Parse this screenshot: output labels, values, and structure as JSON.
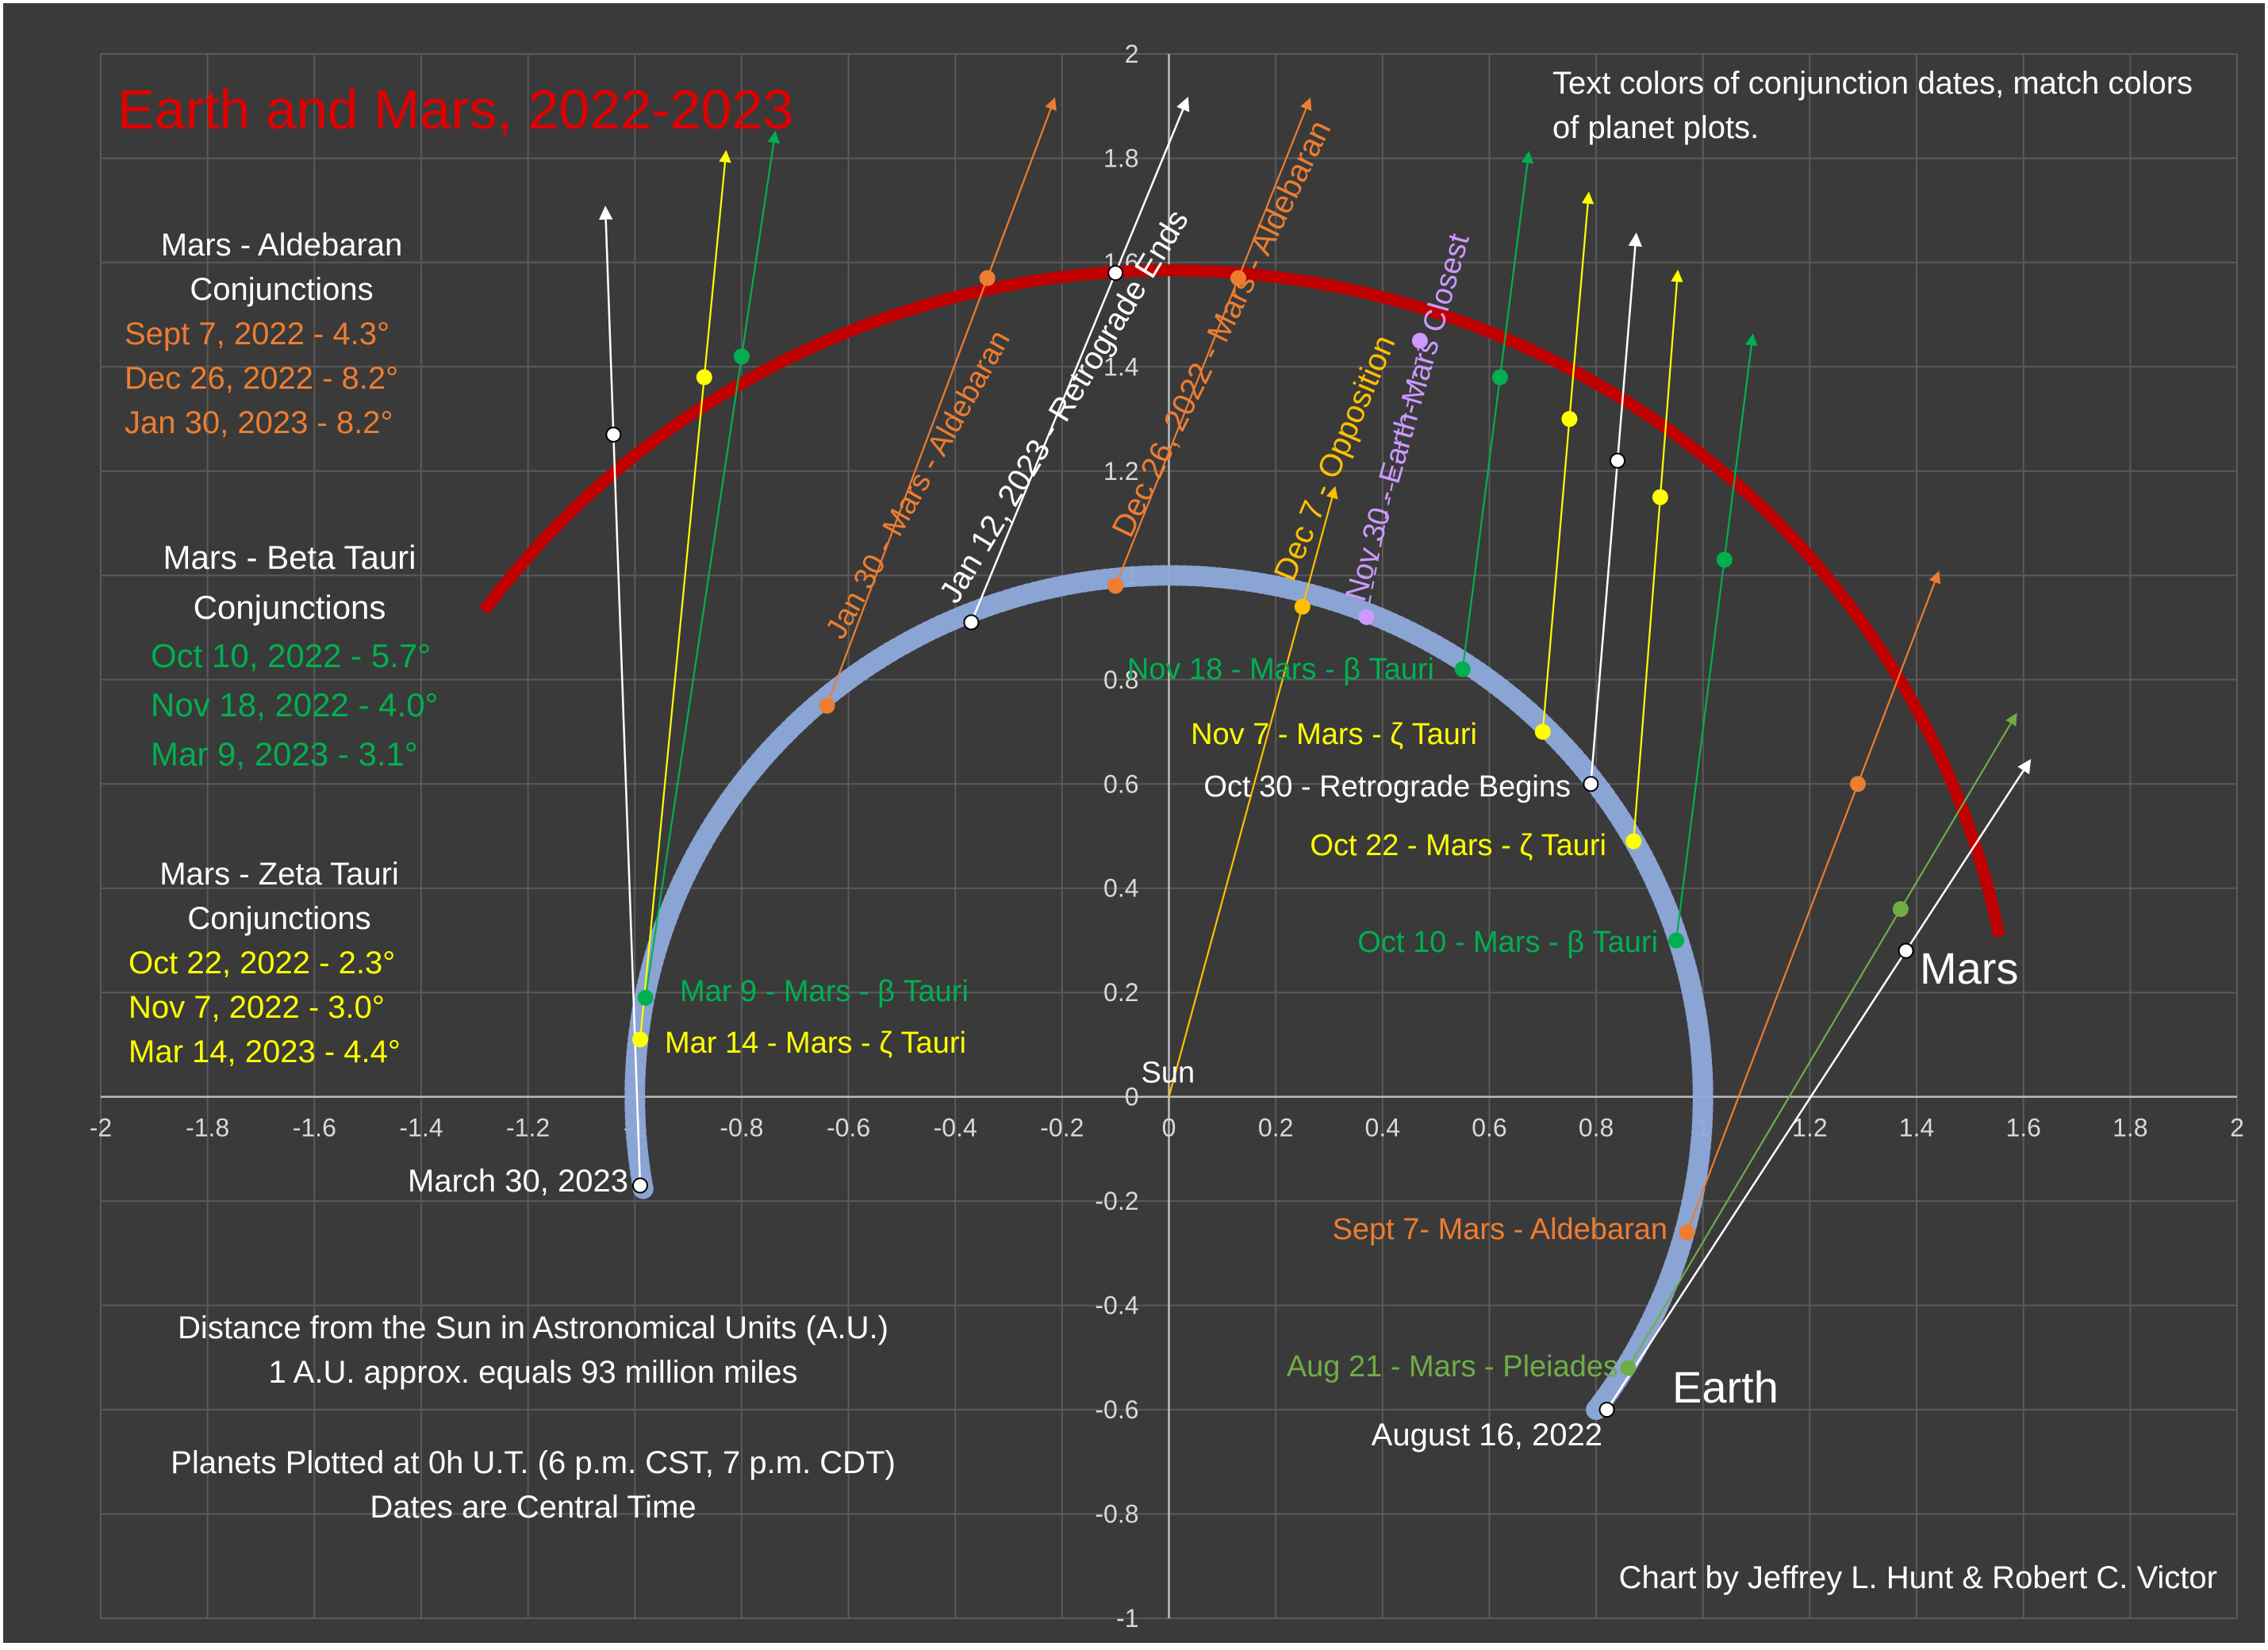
{
  "chart_data": {
    "type": "scatter",
    "title": "Earth and Mars, 2022-2023",
    "xlabel": "",
    "ylabel": "",
    "xlim": [
      -2,
      2
    ],
    "ylim": [
      -1,
      2
    ],
    "x_ticks": [
      "-2",
      "-1.8",
      "-1.6",
      "-1.4",
      "-1.2",
      "-1",
      "-0.8",
      "-0.6",
      "-0.4",
      "-0.2",
      "0",
      "0.2",
      "0.4",
      "0.6",
      "0.8",
      "1",
      "1.2",
      "1.4",
      "1.6",
      "1.8",
      "2"
    ],
    "y_ticks": [
      "-1",
      "-0.8",
      "-0.6",
      "-0.4",
      "-0.2",
      "0",
      "0.2",
      "0.4",
      "0.6",
      "0.8",
      "1",
      "1.2",
      "1.4",
      "1.6",
      "1.8",
      "2"
    ],
    "grid": true,
    "legend": "none",
    "colors": {
      "background": "#3a3a3a",
      "grid": "#5a5a5a",
      "axis": "#bdbdbd",
      "tick_label": "#d9d9d9",
      "title": "#e00000",
      "earth_orbit": "#8eaadb",
      "mars_orbit": "#c00000",
      "aldebaran": "#ed7d31",
      "beta_tauri": "#00b050",
      "zeta_tauri": "#ffff00",
      "retrograde": "#ffffff",
      "opposition": "#ffc000",
      "closest": "#cc99ff",
      "pleiades": "#70ad47",
      "text": "#ffffff"
    },
    "sun": {
      "x": 0,
      "y": 0,
      "label": "Sun"
    },
    "earth_path": {
      "r": 1.0,
      "start_deg": -36.87,
      "end_deg": 190.5,
      "label": "Earth",
      "color": "#8eaadb"
    },
    "mars_path": {
      "r": 1.585,
      "start_deg": 11.2,
      "end_deg": 144.0,
      "label": "Mars",
      "color": "#c00000"
    },
    "sightlines": [
      {
        "earth": [
          0.82,
          -0.6
        ],
        "mars": [
          1.38,
          0.28
        ],
        "color": "#ffffff",
        "earth_label": "August 16, 2022",
        "end_label": "Mars"
      },
      {
        "earth": [
          0.86,
          -0.52
        ],
        "mars": [
          1.37,
          0.36
        ],
        "color": "#70ad47",
        "earth_label": "Aug 21 - Mars - Pleiades"
      },
      {
        "earth": [
          0.97,
          -0.26
        ],
        "mars": [
          1.29,
          0.6
        ],
        "color": "#ed7d31",
        "earth_label": "Sept 7- Mars - Aldebaran"
      },
      {
        "earth": [
          0.95,
          0.3
        ],
        "mars": [
          1.04,
          1.03
        ],
        "color": "#00b050",
        "earth_label": "Oct 10 - Mars - β Tauri"
      },
      {
        "earth": [
          0.87,
          0.49
        ],
        "mars": [
          0.92,
          1.15
        ],
        "color": "#ffff00",
        "earth_label": "Oct 22 - Mars - ζ Tauri"
      },
      {
        "earth": [
          0.79,
          0.6
        ],
        "mars": [
          0.84,
          1.22
        ],
        "color": "#ffffff",
        "earth_label": "Oct 30 - Retrograde  Begins"
      },
      {
        "earth": [
          0.7,
          0.7
        ],
        "mars": [
          0.75,
          1.3
        ],
        "color": "#ffff00",
        "earth_label": "Nov 7 - Mars - ζ Tauri"
      },
      {
        "earth": [
          0.55,
          0.82
        ],
        "mars": [
          0.62,
          1.38
        ],
        "color": "#00b050",
        "earth_label": "Nov 18 - Mars - β Tauri"
      },
      {
        "earth": [
          0.37,
          0.92
        ],
        "mars": [
          0.47,
          1.45
        ],
        "color": "#cc99ff",
        "dashed": true,
        "earth_label": "Nov 30 - Earth-Mars Closest"
      },
      {
        "earth": [
          0.0,
          0.0
        ],
        "mars": [
          0.25,
          0.94
        ],
        "color": "#ffc000",
        "earth_label": "Dec 7 - Opposition"
      },
      {
        "earth": [
          -0.1,
          0.98
        ],
        "mars": [
          0.13,
          1.57
        ],
        "color": "#ed7d31",
        "earth_label": "Dec 26, 2022 - Mars - Aldebaran"
      },
      {
        "earth": [
          -0.37,
          0.91
        ],
        "mars": [
          -0.1,
          1.58
        ],
        "color": "#ffffff",
        "earth_label": "Jan 12, 2023 - Retrograde Ends"
      },
      {
        "earth": [
          -0.64,
          0.75
        ],
        "mars": [
          -0.34,
          1.57
        ],
        "color": "#ed7d31",
        "earth_label": "Jan 30 - Mars - Aldebaran"
      },
      {
        "earth": [
          -0.98,
          0.19
        ],
        "mars": [
          -0.8,
          1.42
        ],
        "color": "#00b050",
        "earth_label": "Mar 9 - Mars - β Tauri"
      },
      {
        "earth": [
          -0.99,
          0.11
        ],
        "mars": [
          -0.87,
          1.38
        ],
        "color": "#ffff00",
        "earth_label": "Mar 14 - Mars - ζ Tauri"
      },
      {
        "earth": [
          -0.99,
          -0.17
        ],
        "mars": [
          -1.04,
          1.27
        ],
        "color": "#ffffff",
        "earth_label": "March 30, 2023"
      }
    ]
  },
  "annotations": {
    "note": "Text colors of conjunction dates, match colors of planet plots.",
    "aldebaran_heading": [
      "Mars - Aldebaran",
      "Conjunctions"
    ],
    "aldebaran_dates": [
      "Sept 7, 2022 - 4.3°",
      "Dec 26, 2022 - 8.2°",
      "Jan 30, 2023 - 8.2°"
    ],
    "beta_heading": [
      "Mars - Beta Tauri",
      "Conjunctions"
    ],
    "beta_dates": [
      "Oct 10, 2022 - 5.7°",
      "Nov 18, 2022 - 4.0°",
      "Mar 9, 2023 - 3.1°"
    ],
    "zeta_heading": [
      "Mars - Zeta Tauri",
      "Conjunctions"
    ],
    "zeta_dates": [
      "Oct 22, 2022 - 2.3°",
      "Nov 7, 2022 - 3.0°",
      "Mar 14, 2023 - 4.4°"
    ],
    "distance_note": [
      "Distance from the Sun in Astronomical Units (A.U.)",
      "1 A.U. approx. equals 93 million miles"
    ],
    "plot_note": [
      "Planets Plotted at 0h U.T. (6 p.m. CST, 7 p.m. CDT)",
      "Dates are Central Time"
    ],
    "credit": "Chart by Jeffrey L. Hunt & Robert C. Victor"
  }
}
